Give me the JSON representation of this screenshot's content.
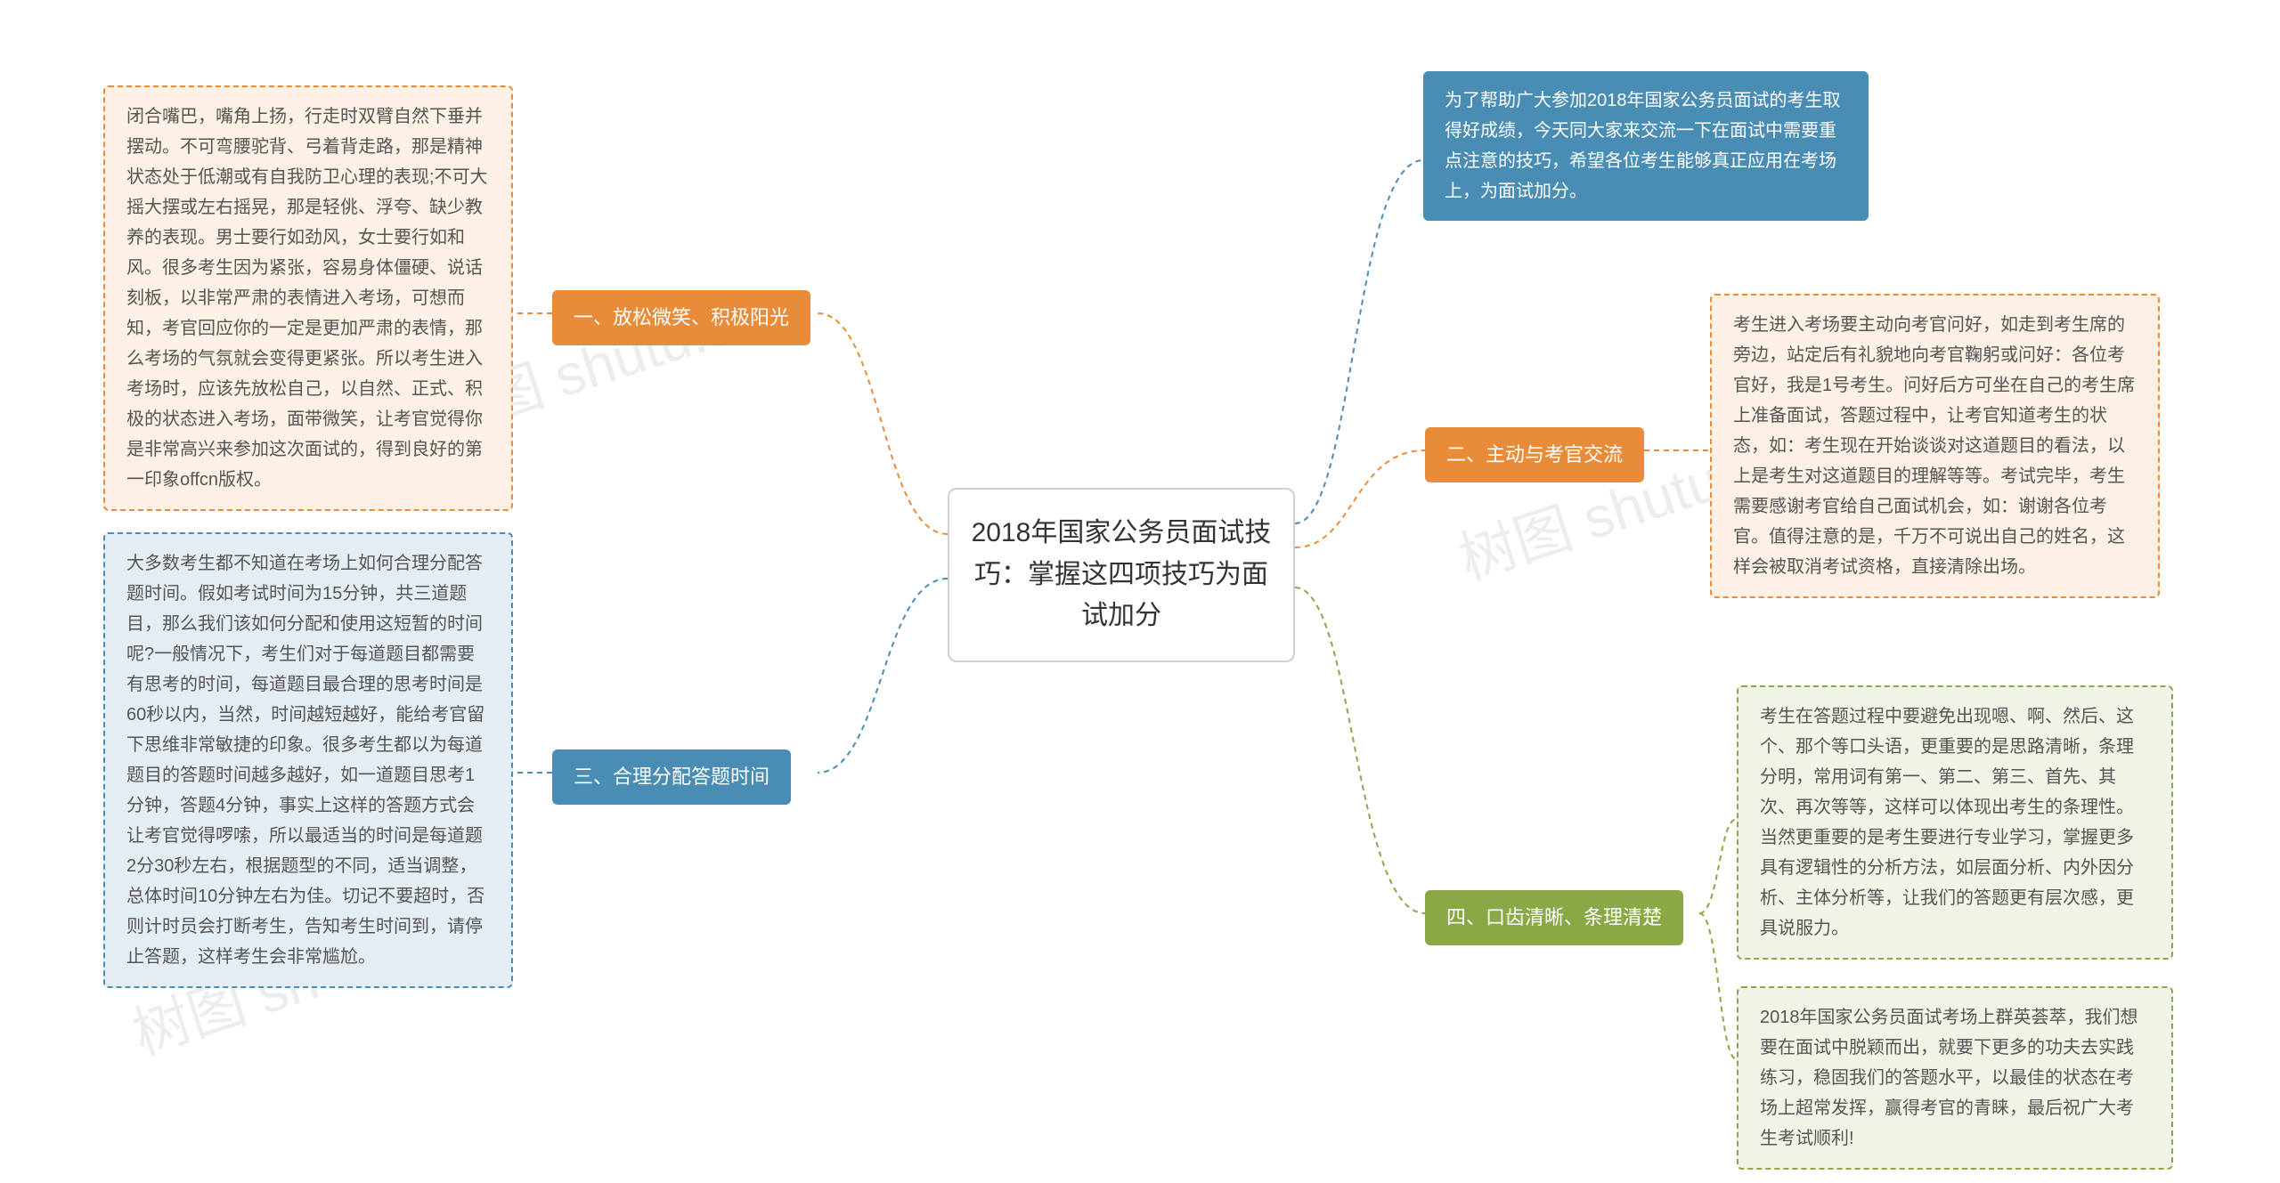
{
  "watermarks": {
    "text1": "树图 shutu.cn",
    "text2": "树图 shutu.cn",
    "text3": "树图 sh"
  },
  "center": {
    "title": "2018年国家公务员面试技巧：掌握这四项技巧为面试加分"
  },
  "intro": {
    "text": "为了帮助广大参加2018年国家公务员面试的考生取得好成绩，今天同大家来交流一下在面试中需要重点注意的技巧，希望各位考生能够真正应用在考场上，为面试加分。",
    "bg": "#4a8db4",
    "color": "#ffffff"
  },
  "branches": {
    "b1": {
      "label": "一、放松微笑、积极阳光",
      "bg": "#e88c3a",
      "content": "闭合嘴巴，嘴角上扬，行走时双臂自然下垂并摆动。不可弯腰驼背、弓着背走路，那是精神状态处于低潮或有自我防卫心理的表现;不可大摇大摆或左右摇晃，那是轻佻、浮夸、缺少教养的表现。男士要行如劲风，女士要行如和风。很多考生因为紧张，容易身体僵硬、说话刻板，以非常严肃的表情进入考场，可想而知，考官回应你的一定是更加严肃的表情，那么考场的气氛就会变得更紧张。所以考生进入考场时，应该先放松自己，以自然、正式、积极的状态进入考场，面带微笑，让考官觉得你是非常高兴来参加这次面试的，得到良好的第一印象offcn版权。",
      "content_bg": "#fdf0e4",
      "content_border": "#e88c3a"
    },
    "b2": {
      "label": "二、主动与考官交流",
      "bg": "#e88c3a",
      "content": "考生进入考场要主动向考官问好，如走到考生席的旁边，站定后有礼貌地向考官鞠躬或问好：各位考官好，我是1号考生。问好后方可坐在自己的考生席上准备面试，答题过程中，让考官知道考生的状态，如：考生现在开始谈谈对这道题目的看法，以上是考生对这道题目的理解等等。考试完毕，考生需要感谢考官给自己面试机会，如：谢谢各位考官。值得注意的是，千万不可说出自己的姓名，这样会被取消考试资格，直接清除出场。",
      "content_bg": "#fdf0e4",
      "content_border": "#e88c3a"
    },
    "b3": {
      "label": "三、合理分配答题时间",
      "bg": "#4a8db4",
      "content": "大多数考生都不知道在考场上如何合理分配答题时间。假如考试时间为15分钟，共三道题目，那么我们该如何分配和使用这短暂的时间呢?一般情况下，考生们对于每道题目都需要有思考的时间，每道题目最合理的思考时间是60秒以内，当然，时间越短越好，能给考官留下思维非常敏捷的印象。很多考生都以为每道题目的答题时间越多越好，如一道题目思考1分钟，答题4分钟，事实上这样的答题方式会让考官觉得啰嗦，所以最适当的时间是每道题2分30秒左右，根据题型的不同，适当调整，总体时间10分钟左右为佳。切记不要超时，否则计时员会打断考生，告知考生时间到，请停止答题，这样考生会非常尴尬。",
      "content_bg": "#e4edf3",
      "content_border": "#4a8db4"
    },
    "b4": {
      "label": "四、口齿清晰、条理清楚",
      "bg": "#8aa845",
      "content1": "考生在答题过程中要避免出现嗯、啊、然后、这个、那个等口头语，更重要的是思路清晰，条理分明，常用词有第一、第二、第三、首先、其次、再次等等，这样可以体现出考生的条理性。当然更重要的是考生要进行专业学习，掌握更多具有逻辑性的分析方法，如层面分析、内外因分析、主体分析等，让我们的答题更有层次感，更具说服力。",
      "content2": "2018年国家公务员面试考场上群英荟萃，我们想要在面试中脱颖而出，就要下更多的功夫去实践练习，稳固我们的答题水平，以最佳的状态在考场上超常发挥，赢得考官的青睐，最后祝广大考生考试顺利!",
      "content_bg": "#f0f4e6",
      "content_border": "#8aa845"
    }
  },
  "connector_colors": {
    "orange": "#e88c3a",
    "blue": "#4a8db4",
    "green": "#8aa845"
  }
}
